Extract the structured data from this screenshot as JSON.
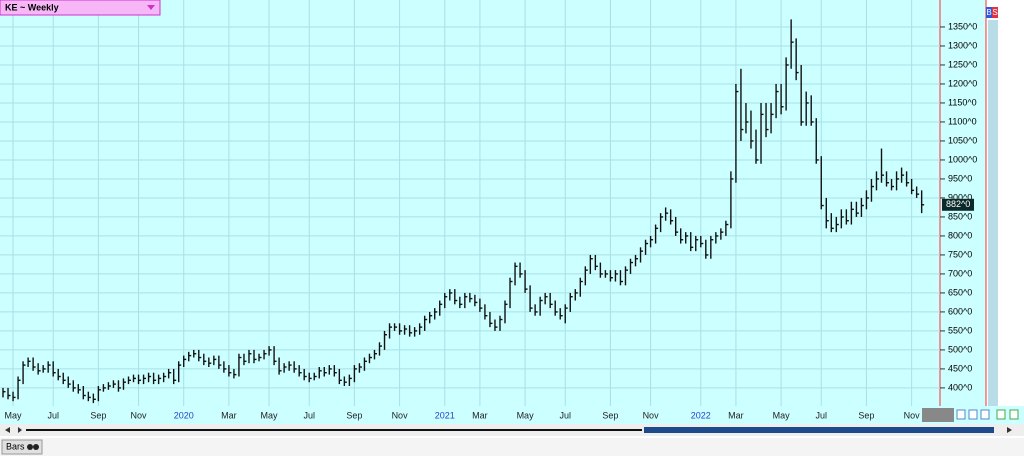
{
  "chart_data": {
    "type": "hlc",
    "title": "KE ~ Weekly",
    "categories": [
      null,
      null,
      "May",
      null,
      null,
      null,
      null,
      null,
      null,
      null,
      "Jul",
      null,
      null,
      null,
      null,
      null,
      null,
      null,
      null,
      "Sep",
      null,
      null,
      null,
      null,
      null,
      null,
      null,
      "Nov",
      null,
      null,
      null,
      null,
      null,
      null,
      null,
      null,
      "2020",
      null,
      null,
      null,
      null,
      null,
      null,
      null,
      null,
      "Mar",
      null,
      null,
      null,
      null,
      null,
      null,
      null,
      "May",
      null,
      null,
      null,
      null,
      null,
      null,
      null,
      "Jul",
      null,
      null,
      null,
      null,
      null,
      null,
      null,
      null,
      "Sep",
      null,
      null,
      null,
      null,
      null,
      null,
      null,
      null,
      "Nov",
      null,
      null,
      null,
      null,
      null,
      null,
      null,
      null,
      "2021",
      null,
      null,
      null,
      null,
      null,
      null,
      "Mar",
      null,
      null,
      null,
      null,
      null,
      null,
      null,
      null,
      "May",
      null,
      null,
      null,
      null,
      null,
      null,
      null,
      "Jul",
      null,
      null,
      null,
      null,
      null,
      null,
      null,
      null,
      "Sep",
      null,
      null,
      null,
      null,
      null,
      null,
      null,
      "Nov",
      null,
      null,
      null,
      null,
      null,
      null,
      null,
      null,
      null,
      "2022",
      null,
      null,
      null,
      null,
      null,
      null,
      "Mar",
      null,
      null,
      null,
      null,
      null,
      null,
      null,
      null,
      "May",
      null,
      null,
      null,
      null,
      null,
      null,
      null,
      "Jul",
      null,
      null,
      null,
      null,
      null,
      null,
      null,
      null,
      "Sep",
      null,
      null,
      null,
      null,
      null,
      null,
      null,
      null,
      "Nov",
      null,
      null
    ],
    "high": [
      400,
      400,
      390,
      430,
      470,
      480,
      480,
      465,
      460,
      470,
      470,
      450,
      440,
      430,
      420,
      410,
      405,
      390,
      385,
      405,
      410,
      415,
      420,
      420,
      425,
      430,
      435,
      435,
      435,
      440,
      440,
      435,
      440,
      450,
      450,
      470,
      485,
      495,
      500,
      500,
      490,
      480,
      485,
      485,
      470,
      460,
      450,
      490,
      490,
      500,
      500,
      490,
      500,
      510,
      510,
      480,
      465,
      470,
      470,
      460,
      450,
      440,
      440,
      455,
      455,
      460,
      460,
      450,
      430,
      435,
      460,
      465,
      480,
      490,
      500,
      520,
      550,
      570,
      570,
      570,
      565,
      565,
      560,
      570,
      590,
      600,
      610,
      630,
      650,
      660,
      660,
      640,
      650,
      650,
      645,
      635,
      620,
      600,
      580,
      590,
      630,
      690,
      730,
      730,
      710,
      670,
      620,
      640,
      650,
      650,
      630,
      610,
      620,
      650,
      660,
      690,
      720,
      750,
      750,
      730,
      710,
      710,
      710,
      710,
      720,
      740,
      750,
      770,
      790,
      800,
      830,
      860,
      875,
      870,
      850,
      820,
      810,
      810,
      800,
      800,
      790,
      800,
      810,
      820,
      840,
      970,
      1200,
      1240,
      1150,
      1130,
      1080,
      1150,
      1150,
      1150,
      1200,
      1200,
      1270,
      1370,
      1320,
      1250,
      1180,
      1170,
      1110,
      1010,
      900,
      860,
      850,
      870,
      870,
      890,
      890,
      900,
      920,
      950,
      970,
      1030,
      970,
      950,
      970,
      980,
      970,
      950,
      930,
      920
    ],
    "low": [
      375,
      370,
      365,
      370,
      410,
      455,
      445,
      435,
      440,
      440,
      430,
      420,
      410,
      400,
      390,
      385,
      370,
      365,
      360,
      365,
      390,
      395,
      400,
      390,
      395,
      410,
      415,
      410,
      410,
      415,
      410,
      410,
      415,
      425,
      410,
      415,
      455,
      470,
      480,
      470,
      460,
      455,
      460,
      450,
      440,
      430,
      425,
      430,
      460,
      465,
      465,
      470,
      475,
      485,
      460,
      435,
      440,
      445,
      440,
      430,
      420,
      415,
      420,
      425,
      430,
      435,
      430,
      410,
      405,
      405,
      415,
      440,
      445,
      465,
      475,
      485,
      500,
      530,
      550,
      540,
      540,
      535,
      535,
      540,
      550,
      570,
      580,
      590,
      610,
      630,
      620,
      610,
      610,
      625,
      615,
      600,
      580,
      560,
      550,
      550,
      570,
      610,
      670,
      690,
      650,
      600,
      590,
      590,
      620,
      610,
      590,
      580,
      570,
      600,
      630,
      640,
      670,
      700,
      710,
      690,
      690,
      680,
      680,
      670,
      670,
      700,
      720,
      730,
      750,
      770,
      780,
      810,
      840,
      830,
      800,
      780,
      780,
      760,
      760,
      770,
      740,
      740,
      780,
      790,
      800,
      820,
      940,
      1050,
      1070,
      1030,
      990,
      990,
      1060,
      1070,
      1110,
      1120,
      1130,
      1240,
      1210,
      1090,
      1090,
      1090,
      990,
      870,
      820,
      810,
      810,
      820,
      830,
      830,
      850,
      850,
      870,
      890,
      920,
      940,
      930,
      920,
      920,
      940,
      930,
      910,
      900,
      860
    ],
    "close": [
      390,
      380,
      375,
      420,
      460,
      470,
      455,
      445,
      450,
      460,
      440,
      430,
      420,
      410,
      400,
      395,
      380,
      375,
      370,
      395,
      400,
      405,
      410,
      400,
      415,
      420,
      425,
      420,
      425,
      430,
      420,
      425,
      430,
      440,
      420,
      460,
      475,
      485,
      490,
      480,
      470,
      465,
      475,
      460,
      450,
      440,
      435,
      480,
      470,
      490,
      475,
      480,
      490,
      500,
      470,
      445,
      455,
      460,
      450,
      440,
      430,
      425,
      430,
      445,
      440,
      450,
      440,
      420,
      415,
      425,
      450,
      455,
      470,
      480,
      490,
      510,
      540,
      560,
      560,
      550,
      555,
      545,
      550,
      560,
      580,
      590,
      600,
      620,
      640,
      650,
      630,
      620,
      640,
      635,
      625,
      610,
      590,
      570,
      560,
      580,
      620,
      680,
      720,
      700,
      660,
      610,
      600,
      630,
      640,
      620,
      600,
      590,
      610,
      640,
      650,
      680,
      710,
      740,
      720,
      700,
      700,
      690,
      700,
      680,
      710,
      730,
      740,
      760,
      780,
      790,
      820,
      850,
      860,
      840,
      810,
      790,
      800,
      770,
      790,
      780,
      750,
      790,
      800,
      810,
      830,
      950,
      1180,
      1080,
      1100,
      1050,
      1000,
      1120,
      1080,
      1120,
      1180,
      1140,
      1250,
      1310,
      1230,
      1100,
      1150,
      1100,
      1000,
      880,
      840,
      820,
      830,
      850,
      840,
      870,
      860,
      880,
      900,
      930,
      950,
      960,
      940,
      930,
      950,
      960,
      940,
      920,
      910,
      882
    ],
    "last_close_label": {
      "value": 882,
      "label": "882^0"
    },
    "color": "#111111",
    "ylim": [
      355,
      1421
    ],
    "yticks": [
      {
        "value": 400,
        "label": "400^0"
      },
      {
        "value": 450,
        "label": "450^0"
      },
      {
        "value": 500,
        "label": "500^0"
      },
      {
        "value": 550,
        "label": "550^0"
      },
      {
        "value": 600,
        "label": "600^0"
      },
      {
        "value": 650,
        "label": "650^0"
      },
      {
        "value": 700,
        "label": "700^0"
      },
      {
        "value": 750,
        "label": "750^0"
      },
      {
        "value": 800,
        "label": "800^0"
      },
      {
        "value": 850,
        "label": "850^0"
      },
      {
        "value": 900,
        "label": "900^0"
      },
      {
        "value": 950,
        "label": "950^0"
      },
      {
        "value": 1000,
        "label": "1000^0"
      },
      {
        "value": 1050,
        "label": "1050^0"
      },
      {
        "value": 1100,
        "label": "1100^0"
      },
      {
        "value": 1150,
        "label": "1150^0"
      },
      {
        "value": 1200,
        "label": "1200^0"
      },
      {
        "value": 1250,
        "label": "1250^0"
      },
      {
        "value": 1300,
        "label": "1300^0"
      },
      {
        "value": 1350,
        "label": "1350^0"
      }
    ],
    "grid": true
  },
  "ui": {
    "tab": "Bars",
    "buttons": [
      "B",
      "S"
    ]
  }
}
